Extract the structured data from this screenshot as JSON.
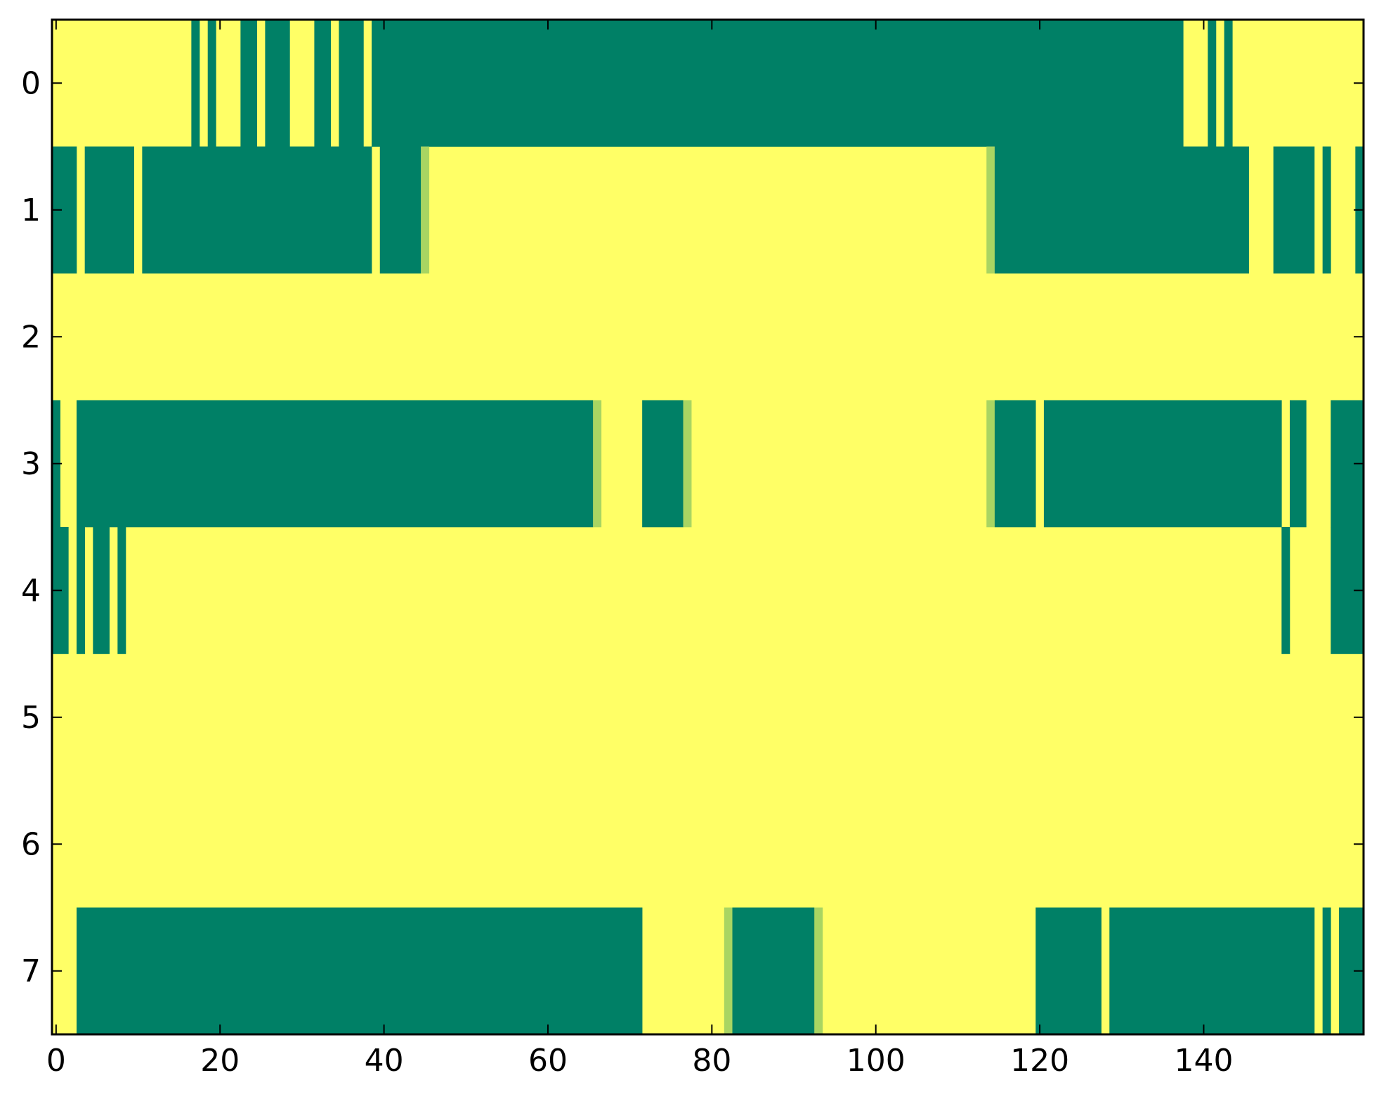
{
  "chart_data": {
    "type": "heatmap",
    "title": "",
    "xlabel": "",
    "ylabel": "",
    "xlim": [
      -0.5,
      159.5
    ],
    "ylim": [
      7.5,
      -0.5
    ],
    "x_ticks": [
      0,
      20,
      40,
      60,
      80,
      100,
      120,
      140
    ],
    "y_ticks": [
      0,
      1,
      2,
      3,
      4,
      5,
      6,
      7
    ],
    "n_columns": 160,
    "n_rows": 8,
    "grid": false,
    "legend": "none",
    "colors": {
      "low": "#ffff66",
      "mid": "#a9d562",
      "high": "#008066",
      "axis": "#000000",
      "background": "#ffffff"
    },
    "background_value": 0,
    "cell_runs_note_free": true,
    "rows": [
      {
        "row": 0,
        "runs": [
          [
            17,
            17,
            1
          ],
          [
            19,
            19,
            1
          ],
          [
            23,
            24,
            1
          ],
          [
            26,
            28,
            1
          ],
          [
            32,
            33,
            1
          ],
          [
            35,
            37,
            1
          ],
          [
            39,
            137,
            1
          ],
          [
            141,
            141,
            1
          ],
          [
            143,
            143,
            1
          ]
        ]
      },
      {
        "row": 1,
        "runs": [
          [
            0,
            2,
            1
          ],
          [
            4,
            9,
            1
          ],
          [
            11,
            38,
            1
          ],
          [
            40,
            44,
            1
          ],
          [
            45,
            45,
            0.5
          ],
          [
            114,
            114,
            0.5
          ],
          [
            115,
            145,
            1
          ],
          [
            149,
            153,
            1
          ],
          [
            155,
            155,
            1
          ],
          [
            159,
            159,
            1
          ]
        ]
      },
      {
        "row": 2,
        "runs": []
      },
      {
        "row": 3,
        "runs": [
          [
            0,
            0,
            1
          ],
          [
            3,
            65,
            1
          ],
          [
            66,
            66,
            0.5
          ],
          [
            72,
            76,
            1
          ],
          [
            77,
            77,
            0.5
          ],
          [
            114,
            114,
            0.5
          ],
          [
            115,
            119,
            1
          ],
          [
            121,
            149,
            1
          ],
          [
            151,
            152,
            1
          ],
          [
            156,
            159,
            1
          ]
        ]
      },
      {
        "row": 4,
        "runs": [
          [
            0,
            1,
            1
          ],
          [
            3,
            3,
            1
          ],
          [
            5,
            6,
            1
          ],
          [
            8,
            8,
            1
          ],
          [
            150,
            150,
            1
          ],
          [
            156,
            159,
            1
          ]
        ]
      },
      {
        "row": 5,
        "runs": []
      },
      {
        "row": 6,
        "runs": []
      },
      {
        "row": 7,
        "runs": [
          [
            3,
            71,
            1
          ],
          [
            82,
            82,
            0.5
          ],
          [
            83,
            92,
            1
          ],
          [
            93,
            93,
            0.5
          ],
          [
            120,
            127,
            1
          ],
          [
            129,
            153,
            1
          ],
          [
            155,
            155,
            1
          ],
          [
            157,
            159,
            1
          ]
        ]
      }
    ]
  }
}
